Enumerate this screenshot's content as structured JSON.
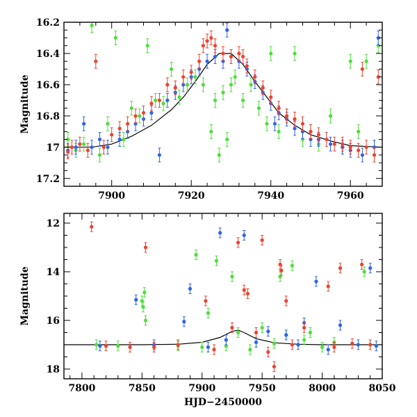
{
  "chart_data": [
    {
      "type": "scatter",
      "ylabel": "Magnitude",
      "xlabel": "",
      "xlim": [
        7888,
        7968
      ],
      "ylim": [
        16.2,
        17.25
      ],
      "y_inverted": true,
      "xticks": [
        7900,
        7920,
        7940,
        7960
      ],
      "yticks": [
        16.2,
        16.4,
        16.6,
        16.8,
        17,
        17.2
      ],
      "ytick_labels": [
        "16.2",
        "16.4",
        "16.6",
        "16.8",
        "17",
        "17.2"
      ],
      "model_curve": {
        "color": "#000000",
        "points": [
          [
            7888,
            17.0
          ],
          [
            7895,
            17.0
          ],
          [
            7900,
            16.98
          ],
          [
            7905,
            16.93
          ],
          [
            7910,
            16.86
          ],
          [
            7915,
            16.76
          ],
          [
            7918,
            16.68
          ],
          [
            7921,
            16.58
          ],
          [
            7924,
            16.47
          ],
          [
            7927,
            16.4
          ],
          [
            7930,
            16.4
          ],
          [
            7933,
            16.47
          ],
          [
            7936,
            16.58
          ],
          [
            7939,
            16.68
          ],
          [
            7942,
            16.78
          ],
          [
            7946,
            16.86
          ],
          [
            7950,
            16.92
          ],
          [
            7955,
            16.96
          ],
          [
            7960,
            16.99
          ],
          [
            7968,
            17.0
          ]
        ]
      },
      "series": [
        {
          "color": "#4dde3a",
          "points": [
            [
              7889,
              16.95
            ],
            [
              7891,
              17.02
            ],
            [
              7893,
              16.98
            ],
            [
              7895,
              16.22
            ],
            [
              7897,
              17.05
            ],
            [
              7899,
              16.85
            ],
            [
              7901,
              16.3
            ],
            [
              7903,
              16.95
            ],
            [
              7905,
              16.75
            ],
            [
              7907,
              16.8
            ],
            [
              7909,
              16.35
            ],
            [
              7911,
              16.7
            ],
            [
              7913,
              16.72
            ],
            [
              7915,
              16.5
            ],
            [
              7917,
              16.68
            ],
            [
              7919,
              16.6
            ],
            [
              7921,
              16.55
            ],
            [
              7923,
              16.6
            ],
            [
              7925,
              16.9
            ],
            [
              7926,
              16.7
            ],
            [
              7927,
              17.05
            ],
            [
              7928,
              16.65
            ],
            [
              7929,
              16.95
            ],
            [
              7930,
              16.6
            ],
            [
              7931,
              16.55
            ],
            [
              7933,
              16.7
            ],
            [
              7935,
              16.6
            ],
            [
              7937,
              16.75
            ],
            [
              7939,
              16.85
            ],
            [
              7940,
              16.4
            ],
            [
              7942,
              16.9
            ],
            [
              7944,
              16.8
            ],
            [
              7946,
              16.4
            ],
            [
              7948,
              16.95
            ],
            [
              7950,
              16.9
            ],
            [
              7952,
              16.98
            ],
            [
              7955,
              16.8
            ],
            [
              7958,
              17.0
            ],
            [
              7960,
              16.45
            ],
            [
              7962,
              16.9
            ],
            [
              7964,
              16.45
            ],
            [
              7966,
              17.0
            ],
            [
              7967,
              16.35
            ]
          ]
        },
        {
          "color": "#2f63e8",
          "points": [
            [
              7889,
              17.02
            ],
            [
              7891,
              17.0
            ],
            [
              7893,
              16.85
            ],
            [
              7895,
              17.0
            ],
            [
              7897,
              16.95
            ],
            [
              7899,
              17.0
            ],
            [
              7902,
              16.95
            ],
            [
              7904,
              16.9
            ],
            [
              7906,
              16.85
            ],
            [
              7908,
              16.82
            ],
            [
              7910,
              16.78
            ],
            [
              7912,
              17.05
            ],
            [
              7914,
              16.7
            ],
            [
              7916,
              16.65
            ],
            [
              7918,
              16.6
            ],
            [
              7920,
              16.55
            ],
            [
              7922,
              16.5
            ],
            [
              7924,
              16.45
            ],
            [
              7926,
              16.42
            ],
            [
              7928,
              16.45
            ],
            [
              7929,
              16.25
            ],
            [
              7930,
              16.42
            ],
            [
              7932,
              16.45
            ],
            [
              7934,
              16.5
            ],
            [
              7936,
              16.58
            ],
            [
              7938,
              16.65
            ],
            [
              7940,
              16.72
            ],
            [
              7941,
              16.85
            ],
            [
              7942,
              16.78
            ],
            [
              7944,
              16.82
            ],
            [
              7946,
              16.88
            ],
            [
              7948,
              16.9
            ],
            [
              7950,
              16.95
            ],
            [
              7952,
              16.95
            ],
            [
              7955,
              16.98
            ],
            [
              7958,
              17.0
            ],
            [
              7960,
              17.02
            ],
            [
              7963,
              17.05
            ],
            [
              7966,
              17.0
            ],
            [
              7967,
              16.3
            ]
          ]
        },
        {
          "color": "#f0412e",
          "points": [
            [
              7889,
              17.03
            ],
            [
              7890,
              17.0
            ],
            [
              7892,
              16.98
            ],
            [
              7894,
              17.02
            ],
            [
              7896,
              16.45
            ],
            [
              7898,
              17.0
            ],
            [
              7900,
              16.92
            ],
            [
              7902,
              16.88
            ],
            [
              7904,
              16.85
            ],
            [
              7906,
              16.8
            ],
            [
              7908,
              16.78
            ],
            [
              7910,
              16.72
            ],
            [
              7912,
              16.7
            ],
            [
              7914,
              16.6
            ],
            [
              7916,
              16.62
            ],
            [
              7918,
              16.55
            ],
            [
              7920,
              16.52
            ],
            [
              7922,
              16.45
            ],
            [
              7923,
              16.35
            ],
            [
              7924,
              16.32
            ],
            [
              7925,
              16.3
            ],
            [
              7926,
              16.35
            ],
            [
              7928,
              16.4
            ],
            [
              7930,
              16.42
            ],
            [
              7932,
              16.4
            ],
            [
              7933,
              16.42
            ],
            [
              7934,
              16.48
            ],
            [
              7936,
              16.55
            ],
            [
              7938,
              16.62
            ],
            [
              7940,
              16.68
            ],
            [
              7942,
              16.75
            ],
            [
              7944,
              16.8
            ],
            [
              7946,
              16.82
            ],
            [
              7948,
              16.85
            ],
            [
              7950,
              16.9
            ],
            [
              7952,
              16.92
            ],
            [
              7954,
              16.95
            ],
            [
              7956,
              16.98
            ],
            [
              7958,
              16.98
            ],
            [
              7960,
              17.0
            ],
            [
              7962,
              17.02
            ],
            [
              7963,
              16.5
            ],
            [
              7964,
              17.0
            ],
            [
              7966,
              17.05
            ],
            [
              7967,
              16.55
            ]
          ]
        }
      ]
    },
    {
      "type": "scatter",
      "ylabel": "Magnitude",
      "xlabel": "HJD−2450000",
      "xlim": [
        7785,
        8050
      ],
      "ylim": [
        11.6,
        18.4
      ],
      "y_inverted": true,
      "xticks": [
        7800,
        7850,
        7900,
        7950,
        8000,
        8050
      ],
      "yticks": [
        12,
        14,
        16,
        18
      ],
      "ytick_labels": [
        "12",
        "14",
        "16",
        "18"
      ],
      "model_curve": {
        "color": "#000000",
        "points": [
          [
            7785,
            17.0
          ],
          [
            7850,
            17.0
          ],
          [
            7880,
            16.98
          ],
          [
            7900,
            16.9
          ],
          [
            7915,
            16.7
          ],
          [
            7925,
            16.45
          ],
          [
            7930,
            16.4
          ],
          [
            7935,
            16.5
          ],
          [
            7945,
            16.75
          ],
          [
            7960,
            16.92
          ],
          [
            7980,
            16.98
          ],
          [
            8000,
            17.0
          ],
          [
            8050,
            17.0
          ]
        ]
      },
      "series": [
        {
          "color": "#4dde3a",
          "points": [
            [
              7812,
              17.0
            ],
            [
              7830,
              17.05
            ],
            [
              7850,
              15.2
            ],
            [
              7851,
              15.45
            ],
            [
              7852,
              14.85
            ],
            [
              7853,
              16.0
            ],
            [
              7860,
              17.0
            ],
            [
              7880,
              17.05
            ],
            [
              7895,
              13.3
            ],
            [
              7900,
              17.1
            ],
            [
              7905,
              15.7
            ],
            [
              7912,
              13.55
            ],
            [
              7920,
              17.05
            ],
            [
              7925,
              14.2
            ],
            [
              7930,
              16.5
            ],
            [
              7940,
              17.2
            ],
            [
              7950,
              16.3
            ],
            [
              7960,
              16.95
            ],
            [
              7965,
              14.2
            ],
            [
              7970,
              16.6
            ],
            [
              7975,
              13.75
            ],
            [
              7985,
              16.8
            ],
            [
              7990,
              16.5
            ],
            [
              8000,
              17.1
            ],
            [
              8010,
              16.9
            ],
            [
              8035,
              14.0
            ],
            [
              8040,
              17.0
            ]
          ]
        },
        {
          "color": "#2f63e8",
          "points": [
            [
              7815,
              17.05
            ],
            [
              7845,
              15.15
            ],
            [
              7860,
              17.0
            ],
            [
              7885,
              16.05
            ],
            [
              7890,
              14.7
            ],
            [
              7905,
              17.1
            ],
            [
              7915,
              12.4
            ],
            [
              7920,
              16.8
            ],
            [
              7935,
              12.5
            ],
            [
              7945,
              16.9
            ],
            [
              7955,
              16.45
            ],
            [
              7970,
              16.6
            ],
            [
              7980,
              17.0
            ],
            [
              7985,
              16.1
            ],
            [
              7995,
              14.4
            ],
            [
              8005,
              17.2
            ],
            [
              8015,
              16.2
            ],
            [
              8030,
              17.0
            ],
            [
              8040,
              13.85
            ],
            [
              8045,
              17.05
            ]
          ]
        },
        {
          "color": "#f0412e",
          "points": [
            [
              7808,
              12.15
            ],
            [
              7820,
              17.05
            ],
            [
              7840,
              17.1
            ],
            [
              7853,
              13.0
            ],
            [
              7860,
              17.1
            ],
            [
              7880,
              17.0
            ],
            [
              7903,
              15.2
            ],
            [
              7910,
              17.2
            ],
            [
              7925,
              16.3
            ],
            [
              7930,
              12.8
            ],
            [
              7935,
              14.75
            ],
            [
              7938,
              14.9
            ],
            [
              7945,
              16.5
            ],
            [
              7950,
              12.7
            ],
            [
              7955,
              17.3
            ],
            [
              7960,
              17.9
            ],
            [
              7965,
              13.7
            ],
            [
              7966,
              13.95
            ],
            [
              7970,
              15.2
            ],
            [
              7975,
              17.0
            ],
            [
              7985,
              16.3
            ],
            [
              8005,
              14.6
            ],
            [
              8010,
              17.1
            ],
            [
              8015,
              13.85
            ],
            [
              8025,
              16.95
            ],
            [
              8033,
              13.7
            ],
            [
              8040,
              17.0
            ]
          ]
        }
      ]
    }
  ]
}
